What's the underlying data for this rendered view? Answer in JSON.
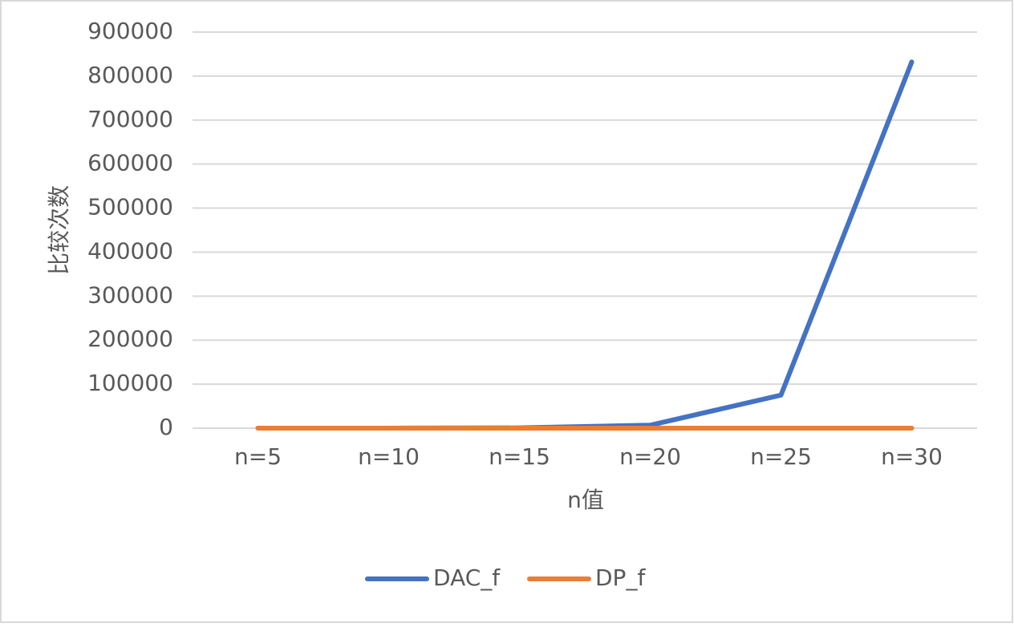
{
  "chart_data": {
    "type": "line",
    "x_label": "n值",
    "y_label": "比较次数",
    "categories": [
      "n=5",
      "n=10",
      "n=15",
      "n=20",
      "n=25",
      "n=30"
    ],
    "series": [
      {
        "name": "DAC_f",
        "color": "#4472c4",
        "values": [
          5,
          55,
          610,
          6765,
          75025,
          832040
        ]
      },
      {
        "name": "DP_f",
        "color": "#ed7d31",
        "values": [
          5,
          10,
          15,
          20,
          25,
          30
        ]
      }
    ],
    "ylim": [
      0,
      900000
    ],
    "yticks": [
      0,
      100000,
      200000,
      300000,
      400000,
      500000,
      600000,
      700000,
      800000,
      900000
    ],
    "grid": true,
    "legend": "bottom"
  }
}
